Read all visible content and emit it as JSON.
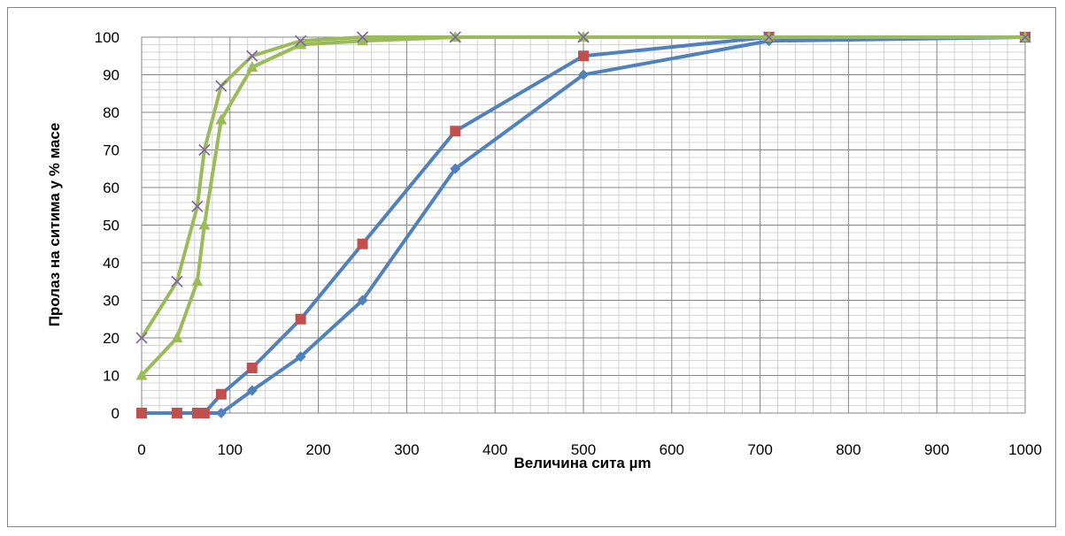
{
  "chart_data": {
    "type": "scatter",
    "title": "",
    "xlabel": "Величина сита µm",
    "ylabel": "Пролаз на ситима у % масе",
    "xlim": [
      0,
      1000
    ],
    "ylim": [
      0,
      100
    ],
    "x_major_step": 100,
    "x_minor_step": 20,
    "y_major_step": 10,
    "y_minor_step": 2,
    "grid": true,
    "legend": "none",
    "series": [
      {
        "color": "#4f81bd",
        "marker": "diamond",
        "x": [
          0,
          40,
          63,
          71,
          90,
          125,
          180,
          250,
          355,
          500,
          710,
          1000
        ],
        "y": [
          0,
          0,
          0,
          0,
          0,
          6,
          15,
          30,
          65,
          90,
          99,
          100
        ]
      },
      {
        "color": "#4f81bd",
        "marker": "square",
        "marker_color": "#c0504d",
        "x": [
          0,
          40,
          63,
          71,
          90,
          125,
          180,
          250,
          355,
          500,
          710,
          1000
        ],
        "y": [
          0,
          0,
          0,
          0,
          5,
          12,
          25,
          45,
          75,
          95,
          100,
          100
        ]
      },
      {
        "color": "#9bbb59",
        "marker": "triangle",
        "x": [
          0,
          40,
          63,
          71,
          90,
          125,
          180,
          250,
          355,
          500,
          710,
          1000
        ],
        "y": [
          10,
          20,
          35,
          50,
          78,
          92,
          98,
          99,
          100,
          100,
          100,
          100
        ]
      },
      {
        "color": "#9bbb59",
        "marker": "x",
        "marker_color": "#8064a2",
        "x": [
          0,
          40,
          63,
          71,
          90,
          125,
          180,
          250,
          355,
          500,
          710,
          1000
        ],
        "y": [
          20,
          35,
          55,
          70,
          87,
          95,
          99,
          100,
          100,
          100,
          100,
          100
        ]
      }
    ]
  }
}
